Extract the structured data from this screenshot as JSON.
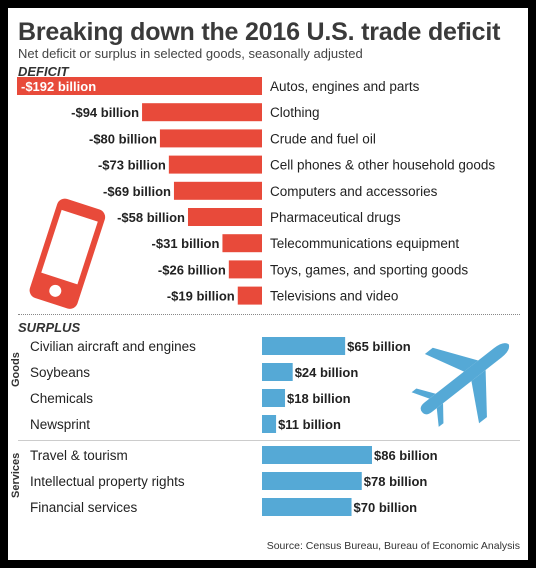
{
  "title": "Breaking down the 2016 U.S. trade deficit",
  "subtitle": "Net deficit or surplus in selected goods, seasonally adjusted",
  "source": "Source: Census Bureau, Bureau of Economic Analysis",
  "colors": {
    "deficit": "#e84a3a",
    "surplus": "#55a9d6",
    "title": "#3a3a3a"
  },
  "chart_data": {
    "type": "bar",
    "unit": "billion",
    "sections": [
      {
        "label": "DEFICIT",
        "groups": [
          {
            "label": "",
            "categories": [
              "Autos, engines and parts",
              "Clothing",
              "Crude and fuel oil",
              "Cell phones & other household goods",
              "Computers and accessories",
              "Pharmaceutical drugs",
              "Telecommunications equipment",
              "Toys, games, and sporting goods",
              "Televisions and video"
            ],
            "values": [
              -192,
              -94,
              -80,
              -73,
              -69,
              -58,
              -31,
              -26,
              -19
            ],
            "value_labels": [
              "-$192 billion",
              "-$94 billion",
              "-$80 billion",
              "-$73 billion",
              "-$69 billion",
              "-$58 billion",
              "-$31 billion",
              "-$26 billion",
              "-$19 billion"
            ]
          }
        ]
      },
      {
        "label": "SURPLUS",
        "groups": [
          {
            "label": "Goods",
            "categories": [
              "Civilian aircraft and engines",
              "Soybeans",
              "Chemicals",
              "Newsprint"
            ],
            "values": [
              65,
              24,
              18,
              11
            ],
            "value_labels": [
              "$65 billion",
              "$24 billion",
              "$18 billion",
              "$11 billion"
            ]
          },
          {
            "label": "Services",
            "categories": [
              "Travel & tourism",
              "Intellectual property rights",
              "Financial services"
            ],
            "values": [
              86,
              78,
              70
            ],
            "value_labels": [
              "$86 billion",
              "$78 billion",
              "$70 billion"
            ]
          }
        ]
      }
    ]
  },
  "icons": [
    "smartphone-icon",
    "airplane-icon"
  ]
}
